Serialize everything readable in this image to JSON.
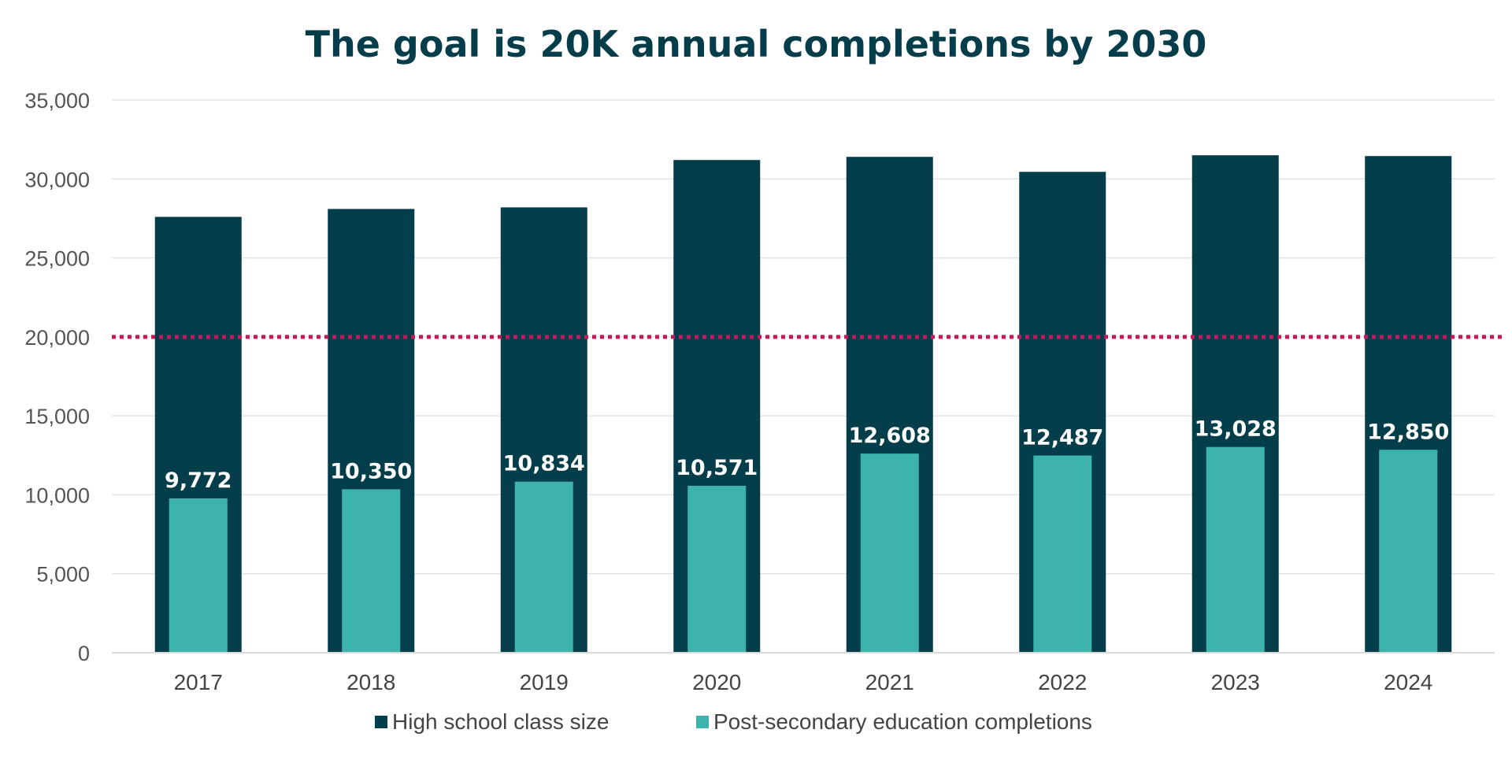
{
  "chart_data": {
    "type": "bar",
    "title": "The goal is 20K annual completions by 2030",
    "xlabel": "",
    "ylabel": "",
    "ylim": [
      0,
      35000
    ],
    "y_ticks": [
      0,
      5000,
      10000,
      15000,
      20000,
      25000,
      30000,
      35000
    ],
    "y_tick_labels": [
      "0",
      "5,000",
      "10,000",
      "15,000",
      "20,000",
      "25,000",
      "30,000",
      "35,000"
    ],
    "grid": true,
    "legend_position": "bottom",
    "categories": [
      "2017",
      "2018",
      "2019",
      "2020",
      "2021",
      "2022",
      "2023",
      "2024"
    ],
    "series": [
      {
        "name": "High school class size",
        "color": "#053e4b",
        "values": [
          27600,
          28100,
          28200,
          31200,
          31400,
          30450,
          31500,
          31450
        ]
      },
      {
        "name": "Post-secondary education completions",
        "color": "#3db3ae",
        "values": [
          9772,
          10350,
          10834,
          10571,
          12608,
          12487,
          13028,
          12850
        ],
        "data_labels": [
          "9,772",
          "10,350",
          "10,834",
          "10,571",
          "12,608",
          "12,487",
          "13,028",
          "12,850"
        ]
      }
    ],
    "reference_line": {
      "value": 20000,
      "color": "#c4185c",
      "style": "dotted"
    }
  }
}
